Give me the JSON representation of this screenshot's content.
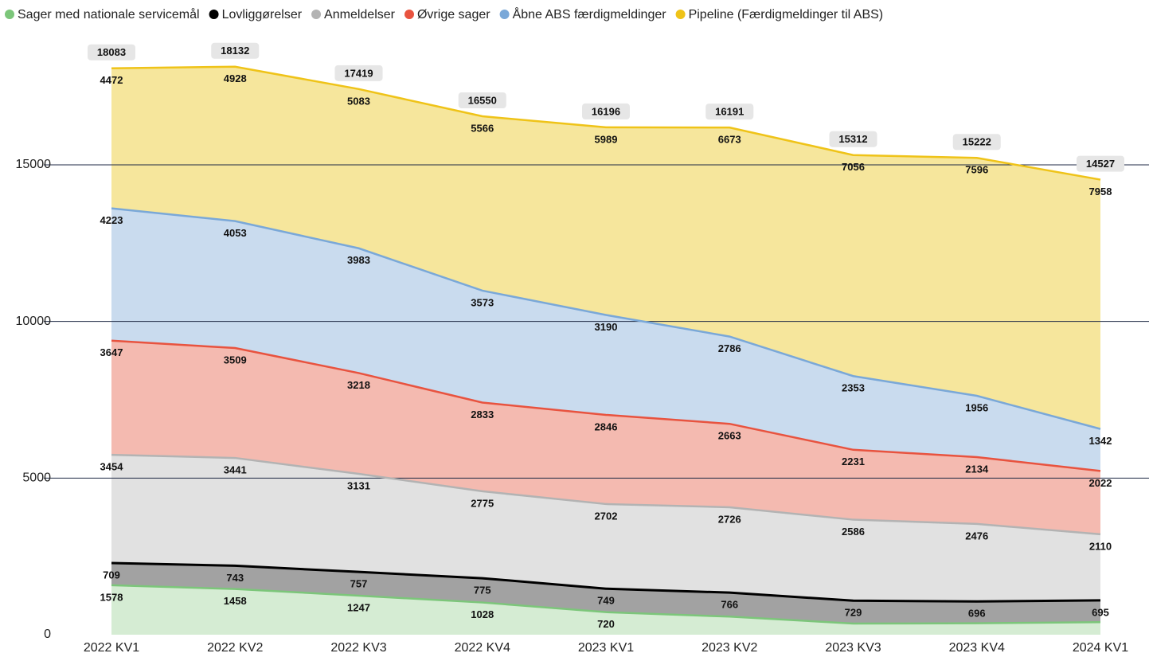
{
  "chart_data": {
    "type": "stacked_area",
    "categories": [
      "2022 KV1",
      "2022 KV2",
      "2022 KV3",
      "2022 KV4",
      "2023 KV1",
      "2023 KV2",
      "2023 KV3",
      "2023 KV4",
      "2024 KV1"
    ],
    "series": [
      {
        "name": "Sager med nationale servicemål",
        "color": "#7cc67a",
        "fill": "#d5ecd3",
        "values": [
          1578,
          1458,
          1247,
          1028,
          720,
          577,
          357,
          364,
          400
        ],
        "value_labels": [
          "1578",
          "1458",
          "1247",
          "1028",
          "720",
          null,
          null,
          null,
          null
        ]
      },
      {
        "name": "Lovliggørelser",
        "color": "#000000",
        "fill": "#a2a2a2",
        "values": [
          709,
          743,
          757,
          775,
          749,
          766,
          729,
          696,
          695
        ]
      },
      {
        "name": "Anmeldelser",
        "color": "#b3b3b3",
        "fill": "#e1e1e1",
        "values": [
          3454,
          3441,
          3131,
          2775,
          2702,
          2726,
          2586,
          2476,
          2110
        ]
      },
      {
        "name": "Øvrige sager",
        "color": "#e8533f",
        "fill": "#f4bab0",
        "values": [
          3647,
          3509,
          3218,
          2833,
          2846,
          2663,
          2231,
          2134,
          2022
        ]
      },
      {
        "name": "Åbne ABS færdigmeldinger",
        "color": "#7aa8d8",
        "fill": "#c9dbee",
        "values": [
          4223,
          4053,
          3983,
          3573,
          3190,
          2786,
          2353,
          1956,
          1342
        ]
      },
      {
        "name": "Pipeline (Færdigmeldinger til ABS)",
        "color": "#efc318",
        "fill": "#f6e69c",
        "values": [
          4472,
          4928,
          5083,
          5566,
          5989,
          6673,
          7056,
          7596,
          7958
        ]
      }
    ],
    "totals": [
      18083,
      18132,
      17419,
      16550,
      16196,
      16191,
      15312,
      15222,
      14527
    ],
    "ylim": [
      0,
      18500
    ],
    "yticks": [
      0,
      5000,
      10000,
      15000
    ],
    "grid": true,
    "legend": "top-left"
  }
}
